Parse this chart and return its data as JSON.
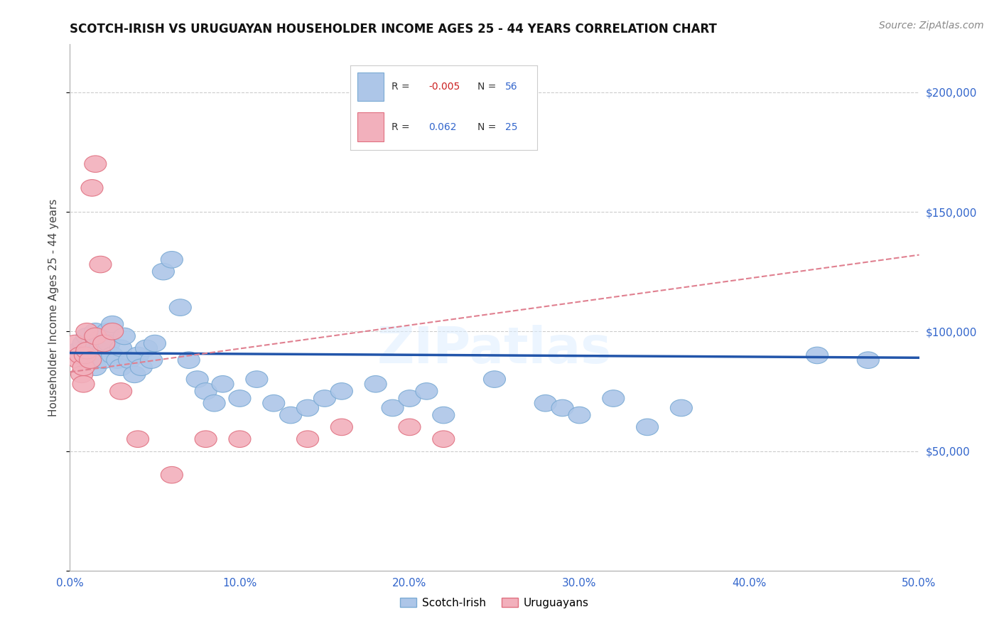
{
  "title": "SCOTCH-IRISH VS URUGUAYAN HOUSEHOLDER INCOME AGES 25 - 44 YEARS CORRELATION CHART",
  "source": "Source: ZipAtlas.com",
  "ylabel": "Householder Income Ages 25 - 44 years",
  "xlim": [
    0.0,
    0.5
  ],
  "ylim": [
    0,
    220000
  ],
  "yticks": [
    0,
    50000,
    100000,
    150000,
    200000
  ],
  "ytick_labels": [
    "",
    "$50,000",
    "$100,000",
    "$150,000",
    "$200,000"
  ],
  "xticks": [
    0.0,
    0.1,
    0.2,
    0.3,
    0.4,
    0.5
  ],
  "xtick_labels": [
    "0.0%",
    "10.0%",
    "20.0%",
    "30.0%",
    "40.0%",
    "50.0%"
  ],
  "grid_color": "#cccccc",
  "background_color": "#ffffff",
  "scotch_irish_color": "#adc6e8",
  "scotch_irish_edge": "#7aaad4",
  "uruguayan_color": "#f2b0bc",
  "uruguayan_edge": "#e07080",
  "scotch_irish_line_color": "#2255aa",
  "uruguayan_line_color": "#e08090",
  "scotch_irish_label": "Scotch-Irish",
  "uruguayan_label": "Uruguayans",
  "scotch_irish_x": [
    0.005,
    0.008,
    0.01,
    0.01,
    0.012,
    0.013,
    0.015,
    0.015,
    0.017,
    0.018,
    0.02,
    0.02,
    0.022,
    0.023,
    0.025,
    0.025,
    0.028,
    0.03,
    0.03,
    0.032,
    0.035,
    0.038,
    0.04,
    0.042,
    0.045,
    0.048,
    0.05,
    0.055,
    0.06,
    0.065,
    0.07,
    0.075,
    0.08,
    0.085,
    0.09,
    0.1,
    0.11,
    0.12,
    0.13,
    0.14,
    0.15,
    0.16,
    0.18,
    0.19,
    0.2,
    0.21,
    0.22,
    0.25,
    0.28,
    0.29,
    0.3,
    0.32,
    0.34,
    0.36,
    0.44,
    0.47
  ],
  "scotch_irish_y": [
    92000,
    95000,
    88000,
    98000,
    90000,
    95000,
    85000,
    100000,
    92000,
    97000,
    88000,
    93000,
    100000,
    95000,
    90000,
    103000,
    88000,
    85000,
    93000,
    98000,
    88000,
    82000,
    90000,
    85000,
    93000,
    88000,
    95000,
    125000,
    130000,
    110000,
    88000,
    80000,
    75000,
    70000,
    78000,
    72000,
    80000,
    70000,
    65000,
    68000,
    72000,
    75000,
    78000,
    68000,
    72000,
    75000,
    65000,
    80000,
    70000,
    68000,
    65000,
    72000,
    60000,
    68000,
    90000,
    88000
  ],
  "uruguayan_x": [
    0.003,
    0.005,
    0.006,
    0.007,
    0.008,
    0.008,
    0.009,
    0.01,
    0.01,
    0.012,
    0.013,
    0.015,
    0.015,
    0.018,
    0.02,
    0.025,
    0.03,
    0.04,
    0.06,
    0.08,
    0.1,
    0.14,
    0.16,
    0.2,
    0.22
  ],
  "uruguayan_y": [
    95000,
    88000,
    90000,
    82000,
    78000,
    85000,
    90000,
    92000,
    100000,
    88000,
    160000,
    170000,
    98000,
    128000,
    95000,
    100000,
    75000,
    55000,
    40000,
    55000,
    55000,
    55000,
    60000,
    60000,
    55000
  ],
  "si_line_x0": 0.0,
  "si_line_x1": 0.5,
  "si_line_y0": 91000,
  "si_line_y1": 89000,
  "ur_line_x0": 0.0,
  "ur_line_x1": 0.5,
  "ur_line_y0": 83000,
  "ur_line_y1": 132000
}
